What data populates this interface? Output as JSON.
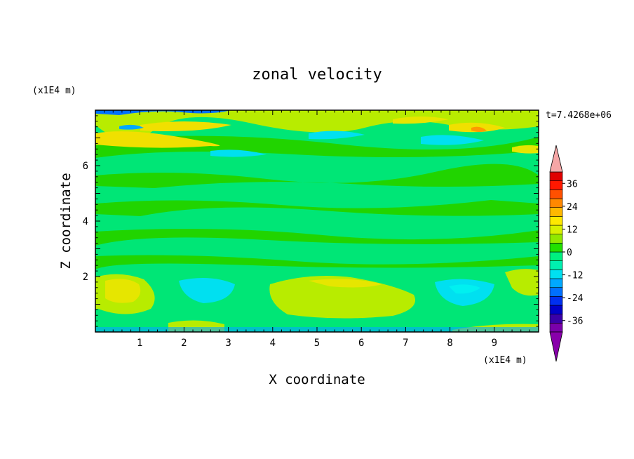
{
  "chart_data": {
    "type": "heatmap",
    "title": "zonal velocity",
    "xlabel": "X coordinate",
    "ylabel": "Z coordinate",
    "x_unit": "(x1E4 m)",
    "y_unit": "(x1E4 m)",
    "time_label": "t=7.4268e+06",
    "xlim": [
      0,
      10
    ],
    "ylim": [
      0,
      8
    ],
    "x_ticks": [
      "1",
      "2",
      "3",
      "4",
      "5",
      "6",
      "7",
      "8",
      "9"
    ],
    "y_ticks": [
      "2",
      "4",
      "6"
    ],
    "colorbar": {
      "min": -42,
      "max": 42,
      "step": 6,
      "tick_labels": [
        "36",
        "24",
        "12",
        "0",
        "-12",
        "-24",
        "-36"
      ],
      "colors": [
        "#7a00aa",
        "#3a00a8",
        "#0000c8",
        "#0030f0",
        "#0070ff",
        "#00a8ff",
        "#00e0f0",
        "#00f0b0",
        "#00f080",
        "#20e000",
        "#90e800",
        "#d8f000",
        "#ffe800",
        "#ffb800",
        "#ff8800",
        "#ff5000",
        "#ff1800",
        "#e00000"
      ],
      "under_color": "#8800aa",
      "over_color": "#f5a6a6"
    },
    "field_description": "Mostly near zero (greens) with positive bands (yellow) near the bottom and top and weak negative patches (cyan)."
  }
}
